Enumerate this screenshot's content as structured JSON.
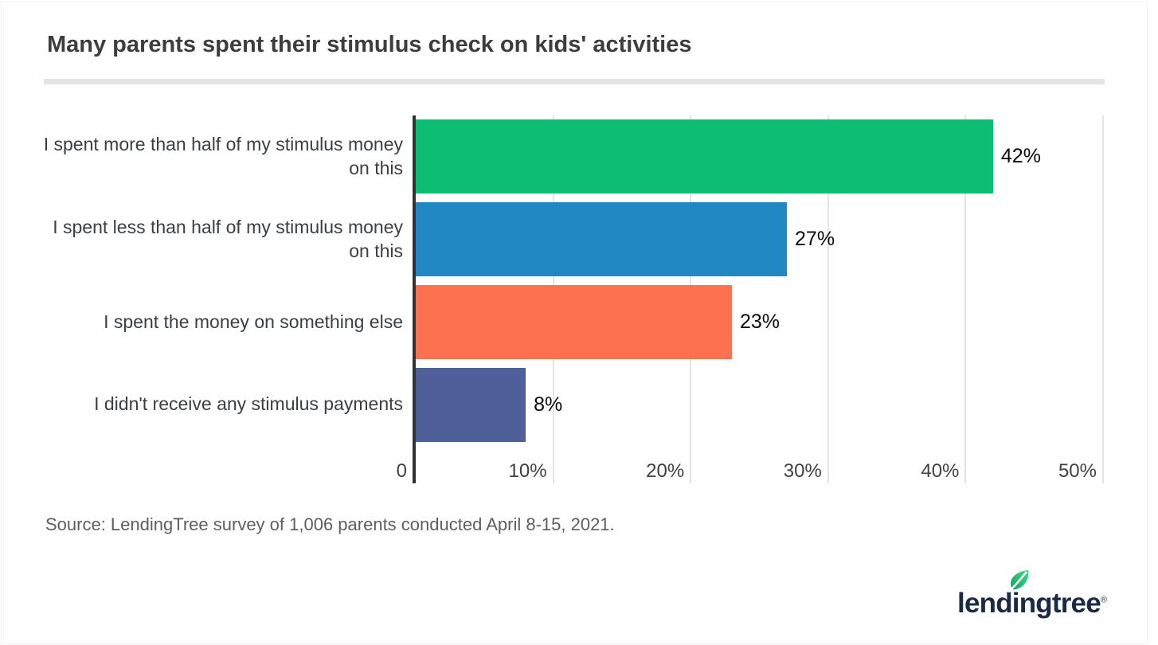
{
  "page": {
    "title": "Many parents spent their stimulus check on kids' activities",
    "source": "Source: LendingTree survey of 1,006 parents conducted April 8-15, 2021.",
    "logo": {
      "wordmark": "lendingtree",
      "registered": "®",
      "leaf_icon": "leaf-icon",
      "brand_navy": "#1b2b45",
      "brand_green": "#2ab564"
    }
  },
  "chart_data": {
    "type": "bar",
    "orientation": "horizontal",
    "title": "Many parents spent their stimulus check on kids' activities",
    "categories": [
      "I spent more than half of my stimulus money\non this",
      "I spent less than half of my stimulus money\non this",
      "I spent the money on something else",
      "I didn't receive any stimulus payments"
    ],
    "values": [
      42,
      27,
      23,
      8
    ],
    "value_labels": [
      "42%",
      "27%",
      "23%",
      "8%"
    ],
    "bar_colors": [
      "#0dbd74",
      "#2187c2",
      "#fd7150",
      "#4d6198"
    ],
    "x_ticks": [
      "0",
      "10%",
      "20%",
      "30%",
      "40%",
      "50%"
    ],
    "x_tick_values": [
      0,
      10,
      20,
      30,
      40,
      50
    ],
    "xlim": [
      0,
      50
    ],
    "grid": true,
    "gridline_color": "#e3e3e3",
    "axis_line_color": "#323232",
    "legend": false,
    "xlabel": "",
    "ylabel": ""
  }
}
